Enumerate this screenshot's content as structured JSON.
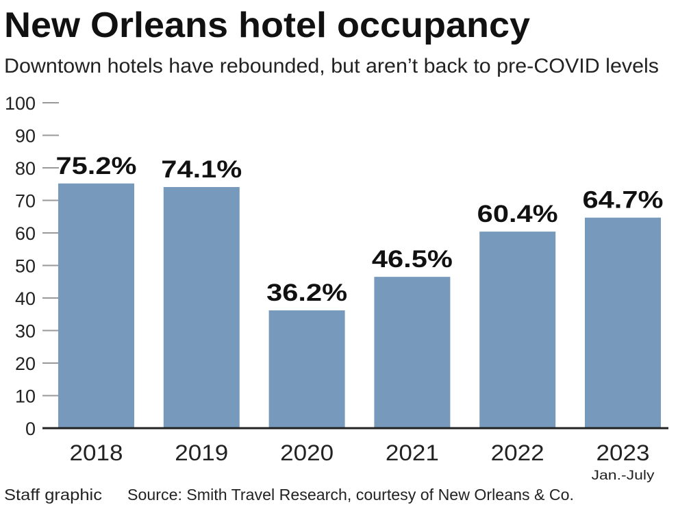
{
  "chart_data": {
    "type": "bar",
    "title": "New Orleans hotel occupancy",
    "subtitle": "Downtown hotels have rebounded, but aren’t back to pre-COVID levels",
    "categories": [
      "2018",
      "2019",
      "2020",
      "2021",
      "2022",
      "2023"
    ],
    "category_sublabels": [
      "",
      "",
      "",
      "",
      "",
      "Jan.-July"
    ],
    "values": [
      75.2,
      74.1,
      36.2,
      46.5,
      60.4,
      64.7
    ],
    "data_labels": [
      "75.2%",
      "74.1%",
      "36.2%",
      "46.5%",
      "60.4%",
      "64.7%"
    ],
    "yticks": [
      "0",
      "10",
      "20",
      "30",
      "40",
      "50",
      "60",
      "70",
      "80",
      "90",
      "100"
    ],
    "ylim": [
      0,
      100
    ],
    "xlabel": "",
    "ylabel": "",
    "grid": false,
    "bar_color": "#7799bb",
    "credit": "Staff graphic",
    "source": "Source: Smith Travel Research, courtesy of New Orleans & Co."
  }
}
